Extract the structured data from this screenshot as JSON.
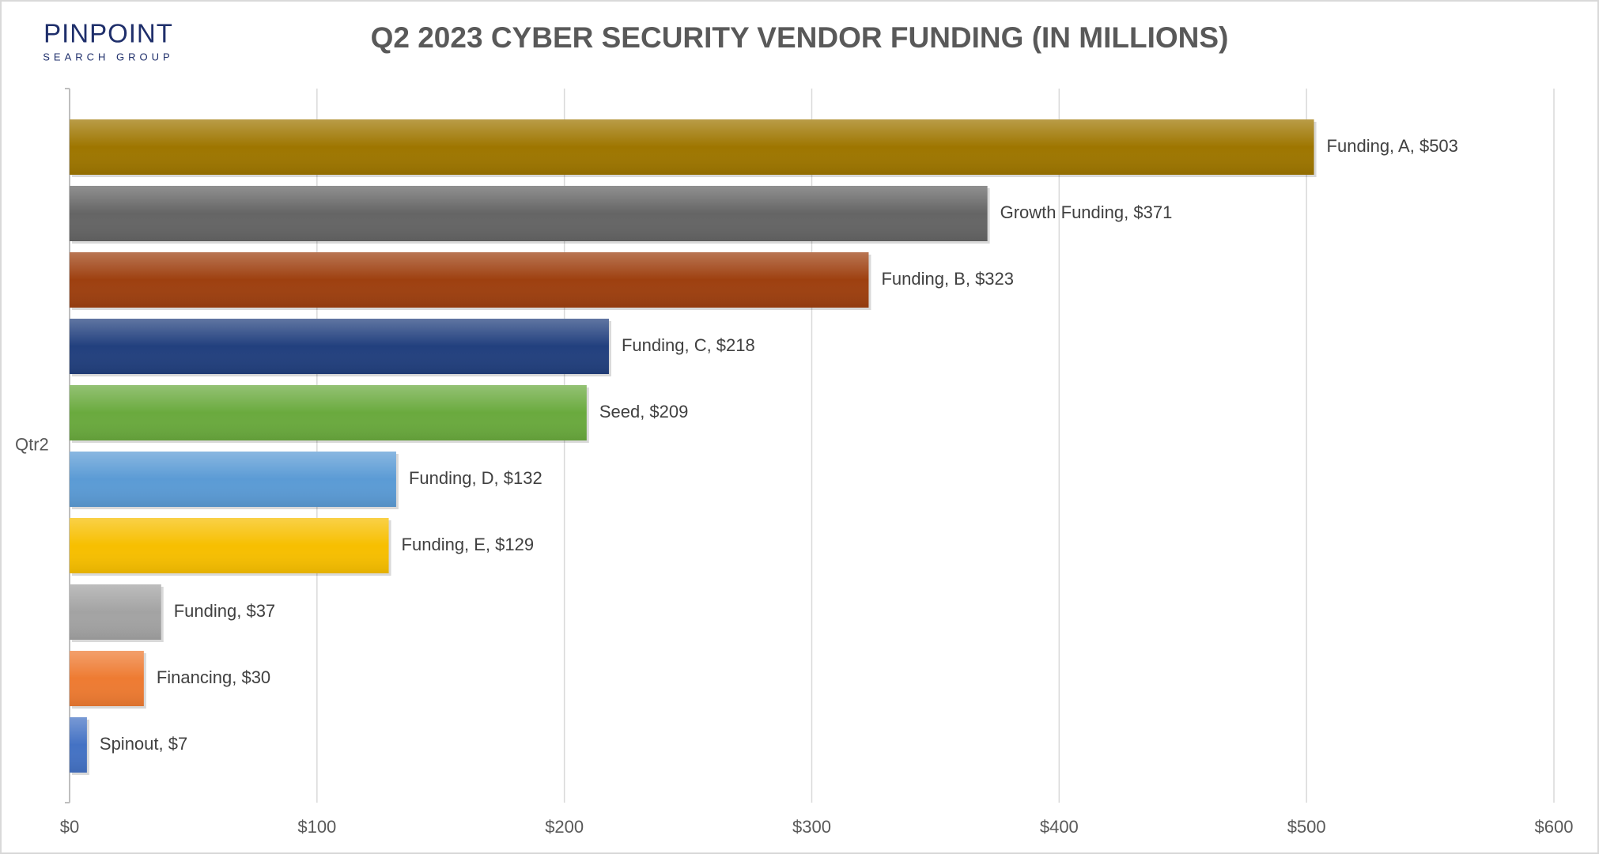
{
  "logo": {
    "name": "PINPOINT",
    "tagline": "SEARCH GROUP"
  },
  "chart_data": {
    "type": "bar",
    "orientation": "horizontal",
    "title": "Q2 2023 CYBER SECURITY VENDOR FUNDING (IN MILLIONS)",
    "categories": [
      "Qtr2"
    ],
    "series": [
      {
        "color": "#9e7600",
        "values": [
          503
        ],
        "value_labels": [
          "Funding, A, $503"
        ]
      },
      {
        "color": "#656565",
        "values": [
          371
        ],
        "value_labels": [
          "Growth Funding, $371"
        ]
      },
      {
        "color": "#9e4010",
        "values": [
          323
        ],
        "value_labels": [
          "Funding, B, $323"
        ]
      },
      {
        "color": "#22407e",
        "values": [
          218
        ],
        "value_labels": [
          "Funding, C, $218"
        ]
      },
      {
        "color": "#6aaa3e",
        "values": [
          209
        ],
        "value_labels": [
          "Seed, $209"
        ]
      },
      {
        "color": "#5b9bd5",
        "values": [
          132
        ],
        "value_labels": [
          "Funding, D, $132"
        ]
      },
      {
        "color": "#f7bf00",
        "values": [
          129
        ],
        "value_labels": [
          "Funding, E, $129"
        ]
      },
      {
        "color": "#a3a3a3",
        "values": [
          37
        ],
        "value_labels": [
          "Funding, $37"
        ]
      },
      {
        "color": "#ee7b32",
        "values": [
          30
        ],
        "value_labels": [
          "Financing, $30"
        ]
      },
      {
        "color": "#4472c4",
        "values": [
          7
        ],
        "value_labels": [
          "Spinout, $7"
        ]
      }
    ],
    "xlim": [
      0,
      600
    ],
    "xticks": [
      {
        "value": 0,
        "label": "$0"
      },
      {
        "value": 100,
        "label": "$100"
      },
      {
        "value": 200,
        "label": "$200"
      },
      {
        "value": 300,
        "label": "$300"
      },
      {
        "value": 400,
        "label": "$400"
      },
      {
        "value": 500,
        "label": "$500"
      },
      {
        "value": 600,
        "label": "$600"
      }
    ],
    "grid": true
  }
}
